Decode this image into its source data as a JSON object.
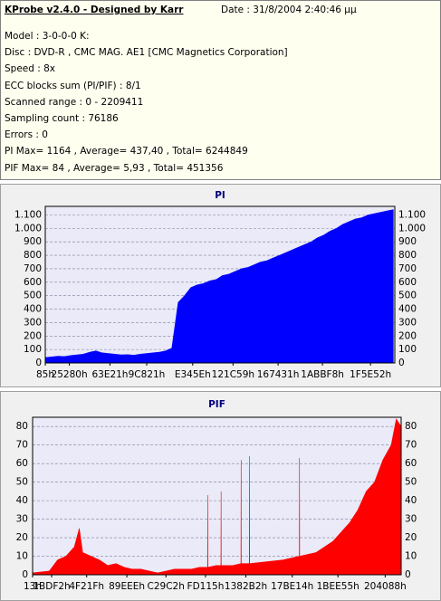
{
  "report": {
    "title": "KProbe v2.4.0 - Designed by Karr",
    "date": "Date : 31/8/2004 2:40:46 μμ",
    "lines": [
      "Model : 3-0-0-0 K:",
      "Disc : DVD-R , CMC MAG. AE1 [CMC Magnetics Corporation]",
      "Speed : 8x",
      "ECC blocks sum (PI/PIF) : 8/1",
      "Scanned range : 0 - 2209411",
      "Sampling count : 76186",
      "Errors : 0",
      "PI Max= 1164 , Average= 437,40 , Total= 6244849",
      "PIF Max= 84 , Average= 5,93 , Total= 451356"
    ]
  },
  "chart_data": [
    {
      "type": "area",
      "title": "PI",
      "color": "#0000ff",
      "grid": true,
      "xlim": [
        0,
        2209411
      ],
      "xticks": [
        {
          "value": 133,
          "label": "85h"
        },
        {
          "value": 152192,
          "label": "25280h"
        },
        {
          "value": 409121,
          "label": "63E21h"
        },
        {
          "value": 641057,
          "label": "9C821h"
        },
        {
          "value": 931934,
          "label": "E345Eh"
        },
        {
          "value": 1186905,
          "label": "121C59h"
        },
        {
          "value": 1471537,
          "label": "167431h"
        },
        {
          "value": 1752056,
          "label": "1ABBF8h"
        },
        {
          "value": 2055762,
          "label": "1F5E52h"
        }
      ],
      "ylim": [
        0,
        1164
      ],
      "yticks": [
        0,
        100,
        200,
        300,
        400,
        500,
        600,
        700,
        800,
        900,
        {
          "value": 1000,
          "label": "1.000"
        },
        {
          "value": 1100,
          "label": "1.100"
        }
      ],
      "x": [
        0,
        40000,
        80000,
        120000,
        160000,
        200000,
        240000,
        280000,
        320000,
        360000,
        400000,
        440000,
        480000,
        520000,
        560000,
        600000,
        640000,
        680000,
        720000,
        760000,
        800000,
        840000,
        880000,
        920000,
        960000,
        1000000,
        1040000,
        1080000,
        1120000,
        1160000,
        1200000,
        1240000,
        1280000,
        1320000,
        1360000,
        1400000,
        1440000,
        1480000,
        1520000,
        1560000,
        1600000,
        1640000,
        1680000,
        1720000,
        1760000,
        1800000,
        1840000,
        1880000,
        1920000,
        1960000,
        2000000,
        2040000,
        2080000,
        2120000,
        2160000,
        2200000
      ],
      "values": [
        40,
        45,
        50,
        48,
        55,
        60,
        65,
        80,
        90,
        75,
        70,
        65,
        60,
        62,
        58,
        65,
        70,
        75,
        80,
        90,
        110,
        450,
        500,
        560,
        580,
        590,
        610,
        620,
        650,
        660,
        680,
        700,
        710,
        730,
        750,
        760,
        780,
        800,
        820,
        840,
        860,
        880,
        900,
        930,
        950,
        980,
        1000,
        1030,
        1050,
        1070,
        1080,
        1100,
        1110,
        1120,
        1130,
        1140
      ]
    },
    {
      "type": "area",
      "title": "PIF",
      "color": "#ff0000",
      "grid": true,
      "xlim": [
        0,
        2209411
      ],
      "xticks": [
        {
          "value": 19,
          "label": "13h"
        },
        {
          "value": 114162,
          "label": "1BDF2h"
        },
        {
          "value": 324127,
          "label": "4F21Fh"
        },
        {
          "value": 564974,
          "label": "89EEEh"
        },
        {
          "value": 799170,
          "label": "C29C2h"
        },
        {
          "value": 1036565,
          "label": "FD115h"
        },
        {
          "value": 1278642,
          "label": "1382B2h"
        },
        {
          "value": 1556500,
          "label": "17BE14h"
        },
        {
          "value": 1830485,
          "label": "1BEE55h"
        },
        {
          "value": 2113672,
          "label": "204088h"
        }
      ],
      "ylim": [
        0,
        85
      ],
      "yticks": [
        0,
        10,
        20,
        30,
        40,
        50,
        60,
        70,
        80
      ],
      "x": [
        0,
        100000,
        150000,
        200000,
        250000,
        280000,
        300000,
        350000,
        400000,
        450000,
        500000,
        550000,
        600000,
        650000,
        700000,
        750000,
        800000,
        850000,
        900000,
        950000,
        1000000,
        1049000,
        1050000,
        1051000,
        1100000,
        1129000,
        1130000,
        1131000,
        1200000,
        1249000,
        1250000,
        1251000,
        1299000,
        1300000,
        1301000,
        1400000,
        1500000,
        1599000,
        1600000,
        1601000,
        1700000,
        1800000,
        1900000,
        1950000,
        2000000,
        2050000,
        2100000,
        2150000,
        2180000,
        2209411
      ],
      "values": [
        1,
        2,
        8,
        10,
        15,
        25,
        12,
        10,
        8,
        5,
        6,
        4,
        3,
        3,
        2,
        1,
        2,
        3,
        3,
        3,
        4,
        4,
        43,
        4,
        5,
        5,
        45,
        5,
        5,
        6,
        62,
        6,
        6,
        64,
        6,
        7,
        8,
        10,
        63,
        10,
        12,
        18,
        28,
        35,
        45,
        50,
        62,
        70,
        84,
        80
      ]
    }
  ]
}
